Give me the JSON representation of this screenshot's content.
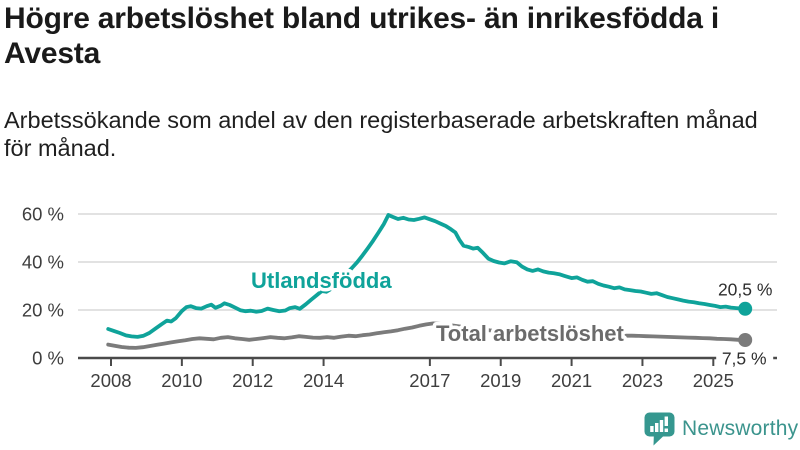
{
  "header": {
    "title": "Högre arbetslöshet bland utrikes- än inrikesfödda i Avesta",
    "subtitle": "Arbetssökande som andel av den registerbaserade arbetskraften månad för månad."
  },
  "branding": {
    "logo_text": "Newsworthy",
    "logo_color": "#3b948d",
    "icon_color": "#35978f",
    "icon": "newsworthy-speech-bubble-bar-chart-icon"
  },
  "chart_data": {
    "type": "line",
    "title": "",
    "xlabel": "",
    "ylabel": "",
    "x_unit": "year (monthly data)",
    "xlim": [
      2007.6,
      2025.95
    ],
    "ylim": [
      0,
      65
    ],
    "grid": "horizontal",
    "legend_position": "inline-labels",
    "colors": {
      "axis": "#4a4a4a",
      "gridline": "#d9d9d9",
      "tick_label": "#3e3e3e",
      "value_label": "#2e2e2e",
      "background": "#ffffff"
    },
    "y_ticks": [
      {
        "value": 0,
        "label": "0 %"
      },
      {
        "value": 20,
        "label": "20 %"
      },
      {
        "value": 40,
        "label": "40 %"
      },
      {
        "value": 60,
        "label": "60 %"
      }
    ],
    "x_ticks": [
      {
        "value": 2008,
        "label": "2008"
      },
      {
        "value": 2010,
        "label": "2010"
      },
      {
        "value": 2012,
        "label": "2012"
      },
      {
        "value": 2014,
        "label": "2014"
      },
      {
        "value": 2017,
        "label": "2017"
      },
      {
        "value": 2019,
        "label": "2019"
      },
      {
        "value": 2021,
        "label": "2021"
      },
      {
        "value": 2023,
        "label": "2023"
      },
      {
        "value": 2025,
        "label": "2025"
      }
    ],
    "series": [
      {
        "name": "Utlandsfödda",
        "color": "#0fa39a",
        "end_label": "20,5 %",
        "end_value": 20.5,
        "points": [
          [
            2007.92,
            12.1
          ],
          [
            2008.08,
            11.3
          ],
          [
            2008.25,
            10.4
          ],
          [
            2008.42,
            9.4
          ],
          [
            2008.58,
            9.0
          ],
          [
            2008.75,
            8.8
          ],
          [
            2008.92,
            9.3
          ],
          [
            2009.08,
            10.4
          ],
          [
            2009.25,
            12.2
          ],
          [
            2009.42,
            14.0
          ],
          [
            2009.58,
            15.6
          ],
          [
            2009.7,
            15.2
          ],
          [
            2009.83,
            16.6
          ],
          [
            2010.0,
            19.6
          ],
          [
            2010.13,
            21.2
          ],
          [
            2010.25,
            21.6
          ],
          [
            2010.4,
            20.8
          ],
          [
            2010.55,
            20.6
          ],
          [
            2010.7,
            21.6
          ],
          [
            2010.83,
            22.2
          ],
          [
            2010.95,
            20.9
          ],
          [
            2011.1,
            21.8
          ],
          [
            2011.2,
            22.8
          ],
          [
            2011.35,
            22.1
          ],
          [
            2011.5,
            21.0
          ],
          [
            2011.65,
            19.9
          ],
          [
            2011.8,
            19.5
          ],
          [
            2011.95,
            19.7
          ],
          [
            2012.1,
            19.3
          ],
          [
            2012.25,
            19.6
          ],
          [
            2012.42,
            20.6
          ],
          [
            2012.58,
            20.0
          ],
          [
            2012.75,
            19.5
          ],
          [
            2012.92,
            19.8
          ],
          [
            2013.05,
            20.8
          ],
          [
            2013.2,
            21.2
          ],
          [
            2013.33,
            20.5
          ],
          [
            2013.5,
            22.4
          ],
          [
            2013.65,
            24.3
          ],
          [
            2013.8,
            26.1
          ],
          [
            2013.95,
            27.9
          ],
          [
            2014.08,
            27.6
          ],
          [
            2014.2,
            28.7
          ],
          [
            2014.35,
            30.4
          ],
          [
            2014.5,
            32.8
          ],
          [
            2014.65,
            35.2
          ],
          [
            2014.8,
            37.5
          ],
          [
            2014.95,
            39.9
          ],
          [
            2015.1,
            42.8
          ],
          [
            2015.25,
            45.8
          ],
          [
            2015.4,
            48.9
          ],
          [
            2015.55,
            52.3
          ],
          [
            2015.7,
            55.8
          ],
          [
            2015.83,
            59.6
          ],
          [
            2015.95,
            58.8
          ],
          [
            2016.1,
            57.9
          ],
          [
            2016.25,
            58.4
          ],
          [
            2016.4,
            57.7
          ],
          [
            2016.55,
            57.5
          ],
          [
            2016.7,
            58.0
          ],
          [
            2016.85,
            58.6
          ],
          [
            2017.0,
            57.8
          ],
          [
            2017.15,
            57.0
          ],
          [
            2017.3,
            56.0
          ],
          [
            2017.45,
            55.0
          ],
          [
            2017.6,
            53.6
          ],
          [
            2017.72,
            52.3
          ],
          [
            2017.83,
            49.3
          ],
          [
            2017.95,
            46.8
          ],
          [
            2018.1,
            46.2
          ],
          [
            2018.22,
            45.6
          ],
          [
            2018.35,
            45.9
          ],
          [
            2018.5,
            43.8
          ],
          [
            2018.65,
            41.4
          ],
          [
            2018.8,
            40.4
          ],
          [
            2018.95,
            39.8
          ],
          [
            2019.1,
            39.4
          ],
          [
            2019.28,
            40.3
          ],
          [
            2019.45,
            39.9
          ],
          [
            2019.6,
            38.1
          ],
          [
            2019.75,
            36.9
          ],
          [
            2019.9,
            36.3
          ],
          [
            2020.05,
            36.9
          ],
          [
            2020.2,
            36.1
          ],
          [
            2020.35,
            35.6
          ],
          [
            2020.5,
            35.3
          ],
          [
            2020.65,
            34.9
          ],
          [
            2020.8,
            34.2
          ],
          [
            2021.0,
            33.3
          ],
          [
            2021.15,
            33.6
          ],
          [
            2021.3,
            32.6
          ],
          [
            2021.45,
            31.8
          ],
          [
            2021.6,
            32.0
          ],
          [
            2021.75,
            30.9
          ],
          [
            2021.9,
            30.2
          ],
          [
            2022.05,
            29.7
          ],
          [
            2022.2,
            29.1
          ],
          [
            2022.35,
            29.4
          ],
          [
            2022.5,
            28.6
          ],
          [
            2022.65,
            28.3
          ],
          [
            2022.8,
            27.9
          ],
          [
            2022.95,
            27.7
          ],
          [
            2023.1,
            27.2
          ],
          [
            2023.25,
            26.7
          ],
          [
            2023.4,
            27.0
          ],
          [
            2023.55,
            26.2
          ],
          [
            2023.7,
            25.4
          ],
          [
            2023.85,
            24.9
          ],
          [
            2024.0,
            24.4
          ],
          [
            2024.15,
            23.9
          ],
          [
            2024.3,
            23.5
          ],
          [
            2024.45,
            23.2
          ],
          [
            2024.6,
            22.8
          ],
          [
            2024.75,
            22.5
          ],
          [
            2024.9,
            22.1
          ],
          [
            2025.05,
            21.7
          ],
          [
            2025.2,
            21.2
          ],
          [
            2025.35,
            21.4
          ],
          [
            2025.5,
            21.0
          ],
          [
            2025.65,
            20.8
          ],
          [
            2025.9,
            20.5
          ]
        ]
      },
      {
        "name": "Total arbetslöshet",
        "color": "#7b7b7b",
        "label_color": "#6b6b6b",
        "end_label": "7,5 %",
        "end_value": 7.5,
        "points": [
          [
            2007.92,
            5.6
          ],
          [
            2008.1,
            5.1
          ],
          [
            2008.3,
            4.6
          ],
          [
            2008.5,
            4.3
          ],
          [
            2008.7,
            4.2
          ],
          [
            2008.9,
            4.5
          ],
          [
            2009.1,
            5.0
          ],
          [
            2009.3,
            5.5
          ],
          [
            2009.5,
            6.0
          ],
          [
            2009.7,
            6.5
          ],
          [
            2009.9,
            7.0
          ],
          [
            2010.1,
            7.4
          ],
          [
            2010.3,
            7.9
          ],
          [
            2010.5,
            8.2
          ],
          [
            2010.7,
            8.0
          ],
          [
            2010.9,
            7.8
          ],
          [
            2011.1,
            8.4
          ],
          [
            2011.3,
            8.7
          ],
          [
            2011.5,
            8.2
          ],
          [
            2011.7,
            7.9
          ],
          [
            2011.9,
            7.6
          ],
          [
            2012.1,
            7.9
          ],
          [
            2012.3,
            8.3
          ],
          [
            2012.5,
            8.7
          ],
          [
            2012.7,
            8.4
          ],
          [
            2012.9,
            8.2
          ],
          [
            2013.1,
            8.6
          ],
          [
            2013.3,
            9.1
          ],
          [
            2013.5,
            8.8
          ],
          [
            2013.7,
            8.5
          ],
          [
            2013.9,
            8.4
          ],
          [
            2014.1,
            8.7
          ],
          [
            2014.3,
            8.4
          ],
          [
            2014.5,
            8.9
          ],
          [
            2014.7,
            9.3
          ],
          [
            2014.9,
            9.1
          ],
          [
            2015.1,
            9.5
          ],
          [
            2015.3,
            9.8
          ],
          [
            2015.5,
            10.3
          ],
          [
            2015.7,
            10.7
          ],
          [
            2015.9,
            11.1
          ],
          [
            2016.1,
            11.6
          ],
          [
            2016.3,
            12.2
          ],
          [
            2016.5,
            12.7
          ],
          [
            2016.7,
            13.4
          ],
          [
            2016.9,
            14.0
          ],
          [
            2017.1,
            14.4
          ],
          [
            2017.3,
            14.2
          ],
          [
            2017.5,
            13.8
          ],
          [
            2017.7,
            13.4
          ],
          [
            2017.9,
            13.0
          ],
          [
            2018.1,
            12.5
          ],
          [
            2018.3,
            12.1
          ],
          [
            2018.5,
            11.8
          ],
          [
            2018.7,
            11.5
          ],
          [
            2018.9,
            11.3
          ],
          [
            2019.1,
            11.1
          ],
          [
            2019.3,
            10.9
          ],
          [
            2019.5,
            10.8
          ],
          [
            2019.7,
            10.9
          ],
          [
            2019.9,
            11.1
          ],
          [
            2020.1,
            11.4
          ],
          [
            2020.3,
            11.7
          ],
          [
            2020.5,
            11.8
          ],
          [
            2020.7,
            11.5
          ],
          [
            2020.9,
            11.2
          ],
          [
            2021.1,
            10.8
          ],
          [
            2021.3,
            10.4
          ],
          [
            2021.5,
            10.1
          ],
          [
            2021.7,
            9.9
          ],
          [
            2021.9,
            9.7
          ],
          [
            2022.1,
            9.5
          ],
          [
            2022.3,
            9.4
          ],
          [
            2022.5,
            9.3
          ],
          [
            2022.7,
            9.3
          ],
          [
            2022.9,
            9.2
          ],
          [
            2023.1,
            9.1
          ],
          [
            2023.3,
            9.0
          ],
          [
            2023.5,
            8.9
          ],
          [
            2023.7,
            8.8
          ],
          [
            2023.9,
            8.7
          ],
          [
            2024.1,
            8.6
          ],
          [
            2024.3,
            8.5
          ],
          [
            2024.5,
            8.4
          ],
          [
            2024.7,
            8.3
          ],
          [
            2024.9,
            8.2
          ],
          [
            2025.1,
            8.0
          ],
          [
            2025.3,
            7.9
          ],
          [
            2025.5,
            7.8
          ],
          [
            2025.7,
            7.6
          ],
          [
            2025.9,
            7.5
          ]
        ]
      }
    ]
  }
}
